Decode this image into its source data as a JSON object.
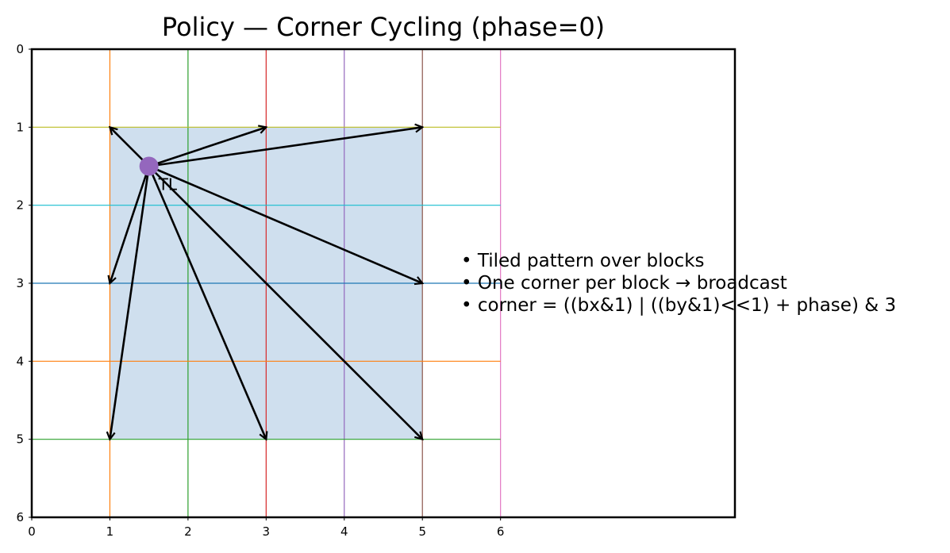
{
  "title": "Policy — Corner Cycling (phase=0)",
  "colors": {
    "fill_block": "#cfdfee",
    "arrow": "#000000",
    "origin_dot": "#9467bd",
    "frame": "#000000",
    "vertical_lines": [
      "#ff7f0e",
      "#2ca02c",
      "#d62728",
      "#9467bd",
      "#8c564b",
      "#e377c2"
    ],
    "horizontal_lines": [
      "#bcbd22",
      "#17becf",
      "#1f77b4",
      "#ff7f0e",
      "#2ca02c"
    ]
  },
  "axes": {
    "x_ticks": [
      "0",
      "1",
      "2",
      "3",
      "4",
      "5",
      "6"
    ],
    "y_ticks": [
      "0",
      "1",
      "2",
      "3",
      "4",
      "5",
      "6"
    ],
    "x_range": [
      0,
      9
    ],
    "y_range": [
      0,
      6
    ],
    "y_inverted": true
  },
  "grid": {
    "vertical_x": [
      1,
      2,
      3,
      4,
      5,
      6
    ],
    "vertical_y_span": [
      0,
      6
    ],
    "horizontal_y": [
      1,
      2,
      3,
      4,
      5
    ],
    "horizontal_x_span": [
      0,
      6
    ]
  },
  "block": {
    "x0": 1,
    "x1": 5,
    "y0": 1,
    "y1": 5
  },
  "origin": {
    "x": 1.5,
    "y": 1.5,
    "label": "TL"
  },
  "arrow_targets": [
    {
      "x": 1,
      "y": 1
    },
    {
      "x": 3,
      "y": 1
    },
    {
      "x": 5,
      "y": 1
    },
    {
      "x": 1,
      "y": 3
    },
    {
      "x": 5,
      "y": 3
    },
    {
      "x": 1,
      "y": 5
    },
    {
      "x": 3,
      "y": 5
    },
    {
      "x": 5,
      "y": 5
    }
  ],
  "notes": [
    "• Tiled pattern over blocks",
    "• One corner per block → broadcast",
    "• corner = ((bx&1) | ((by&1)<<1) + phase) & 3"
  ]
}
